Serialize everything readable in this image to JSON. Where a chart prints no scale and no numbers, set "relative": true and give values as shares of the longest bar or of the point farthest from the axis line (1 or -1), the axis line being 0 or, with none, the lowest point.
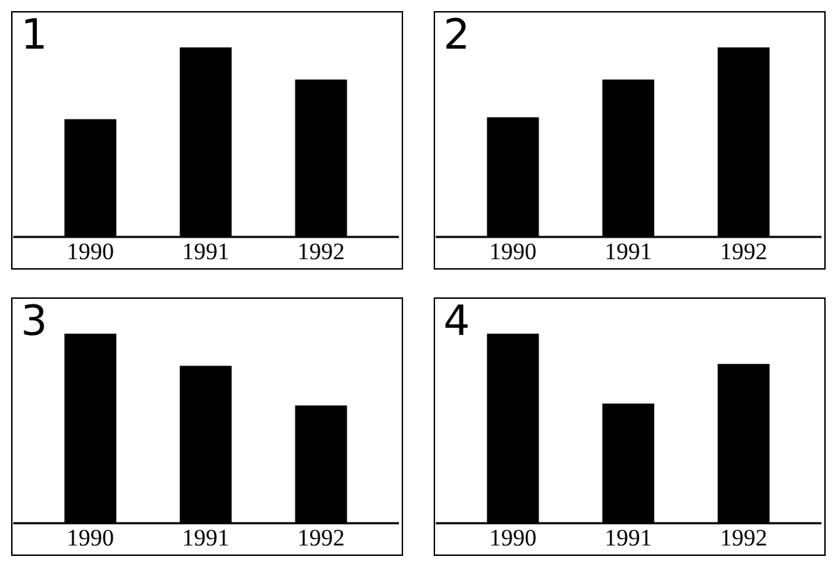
{
  "chart_data": [
    {
      "type": "bar",
      "title": "1",
      "categories": [
        "1990",
        "1991",
        "1992"
      ],
      "values": [
        0.62,
        1,
        0.83
      ],
      "color": "#000000",
      "relative": true
    },
    {
      "type": "bar",
      "title": "2",
      "categories": [
        "1990",
        "1991",
        "1992"
      ],
      "values": [
        0.63,
        0.83,
        1
      ],
      "color": "#000000",
      "relative": true
    },
    {
      "type": "bar",
      "title": "3",
      "categories": [
        "1990",
        "1991",
        "1992"
      ],
      "values": [
        1,
        0.83,
        0.62
      ],
      "color": "#000000",
      "relative": true
    },
    {
      "type": "bar",
      "title": "4",
      "categories": [
        "1990",
        "1991",
        "1992"
      ],
      "values": [
        1,
        0.63,
        0.84
      ],
      "color": "#000000",
      "relative": true
    }
  ]
}
